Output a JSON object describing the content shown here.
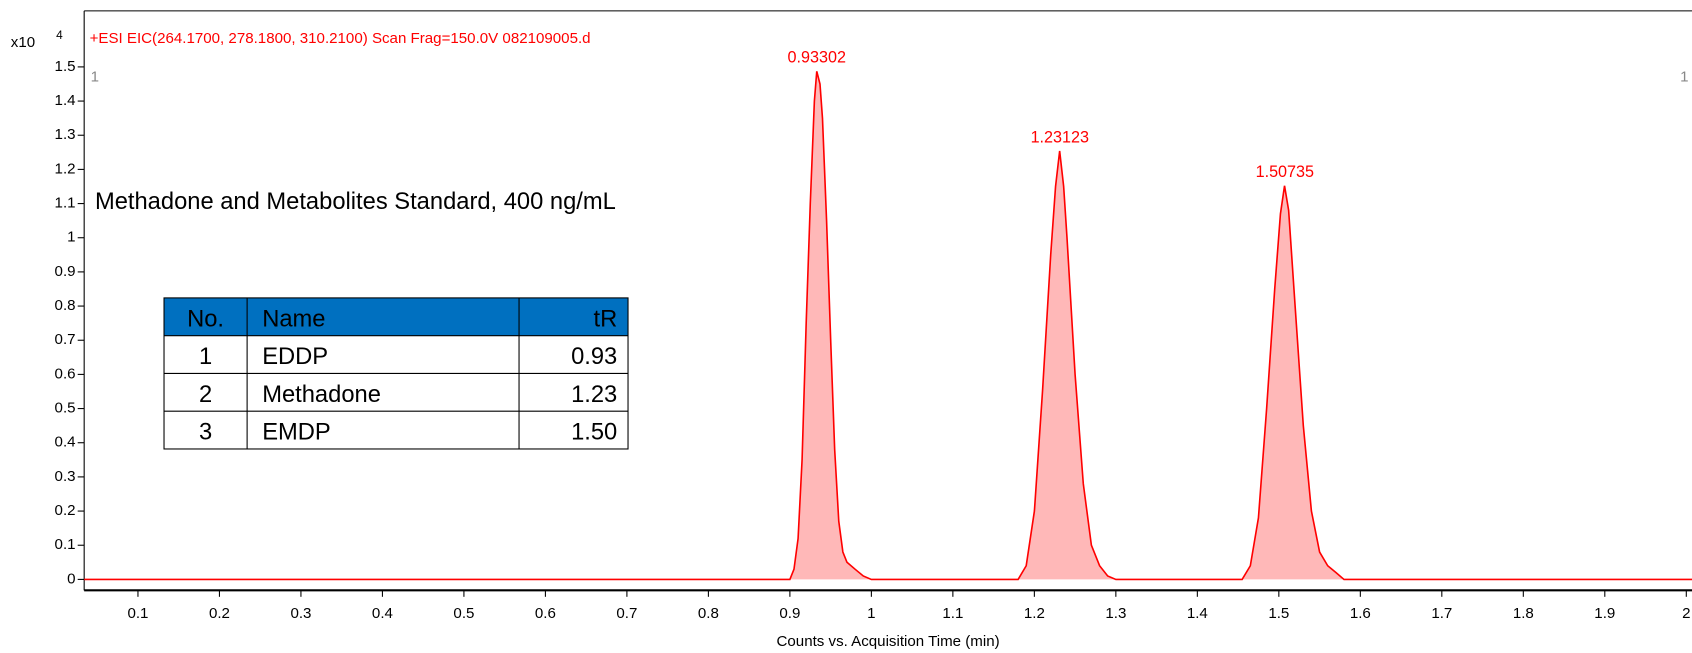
{
  "chart_data": {
    "type": "line",
    "header": "+ESI EIC(264.1700, 278.1800, 310.2100) Scan Frag=150.0V 082109005.d",
    "y_multiplier": "x10",
    "y_exponent": "4",
    "corner_left": "1",
    "corner_right": "1",
    "title": "Methadone and Metabolites Standard, 400 ng/mL",
    "x_label": "Counts vs. Acquisition Time (min)",
    "xlim": [
      0.034,
      2.007
    ],
    "ylim": [
      -0.032,
      1.664
    ],
    "xticks": [
      0.1,
      0.2,
      0.3,
      0.4,
      0.5,
      0.6,
      0.7,
      0.8,
      0.9,
      1,
      1.1,
      1.2,
      1.3,
      1.4,
      1.5,
      1.6,
      1.7,
      1.8,
      1.9,
      2
    ],
    "yticks": [
      0,
      0.1,
      0.2,
      0.3,
      0.4,
      0.5,
      0.6,
      0.7,
      0.8,
      0.9,
      1,
      1.1,
      1.2,
      1.3,
      1.4,
      1.5
    ],
    "color": "#ff0000",
    "fill": "#ffb8b8",
    "x": [
      0.034,
      0.9,
      0.905,
      0.91,
      0.915,
      0.92,
      0.925,
      0.93,
      0.933,
      0.937,
      0.94,
      0.945,
      0.95,
      0.955,
      0.96,
      0.965,
      0.97,
      0.98,
      0.99,
      1.0,
      1.18,
      1.19,
      1.2,
      1.21,
      1.22,
      1.226,
      1.231,
      1.236,
      1.24,
      1.25,
      1.26,
      1.27,
      1.28,
      1.29,
      1.3,
      1.455,
      1.465,
      1.475,
      1.485,
      1.495,
      1.502,
      1.507,
      1.512,
      1.52,
      1.53,
      1.54,
      1.55,
      1.56,
      1.57,
      1.58,
      2.007
    ],
    "values": [
      0,
      0,
      0.03,
      0.12,
      0.35,
      0.75,
      1.1,
      1.4,
      1.487,
      1.45,
      1.35,
      1.05,
      0.7,
      0.38,
      0.17,
      0.08,
      0.05,
      0.03,
      0.01,
      0,
      0,
      0.04,
      0.2,
      0.55,
      0.95,
      1.15,
      1.254,
      1.15,
      1.0,
      0.6,
      0.28,
      0.1,
      0.04,
      0.01,
      0,
      0,
      0.04,
      0.18,
      0.5,
      0.85,
      1.07,
      1.152,
      1.08,
      0.8,
      0.45,
      0.2,
      0.08,
      0.04,
      0.02,
      0,
      0
    ],
    "peaks": [
      {
        "x": 0.93302,
        "y": 1.487
      },
      {
        "x": 1.23123,
        "y": 1.254
      },
      {
        "x": 1.50735,
        "y": 1.152
      }
    ],
    "table": {
      "header": [
        "No.",
        "Name",
        "tR"
      ],
      "rows": [
        [
          "1",
          "EDDP",
          "0.93"
        ],
        [
          "2",
          "Methadone",
          "1.23"
        ],
        [
          "3",
          "EMDP",
          "1.50"
        ]
      ]
    }
  }
}
